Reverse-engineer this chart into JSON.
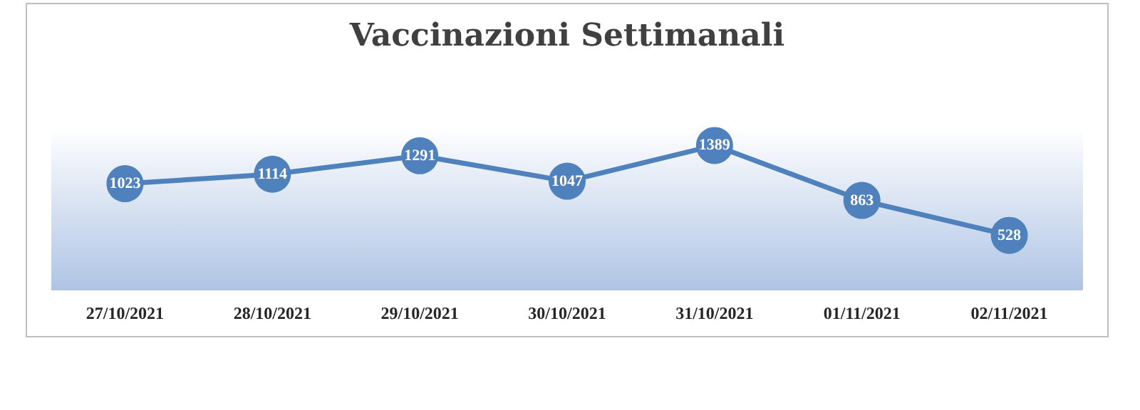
{
  "chart_data": {
    "type": "line",
    "title": "Vaccinazioni Settimanali",
    "categories": [
      "27/10/2021",
      "28/10/2021",
      "29/10/2021",
      "30/10/2021",
      "31/10/2021",
      "01/11/2021",
      "02/11/2021"
    ],
    "values": [
      1023,
      1114,
      1291,
      1047,
      1389,
      863,
      528
    ],
    "color": "#4f81bd",
    "data_labels": true,
    "marker": "circle",
    "line_style": "solid",
    "grid": false
  }
}
